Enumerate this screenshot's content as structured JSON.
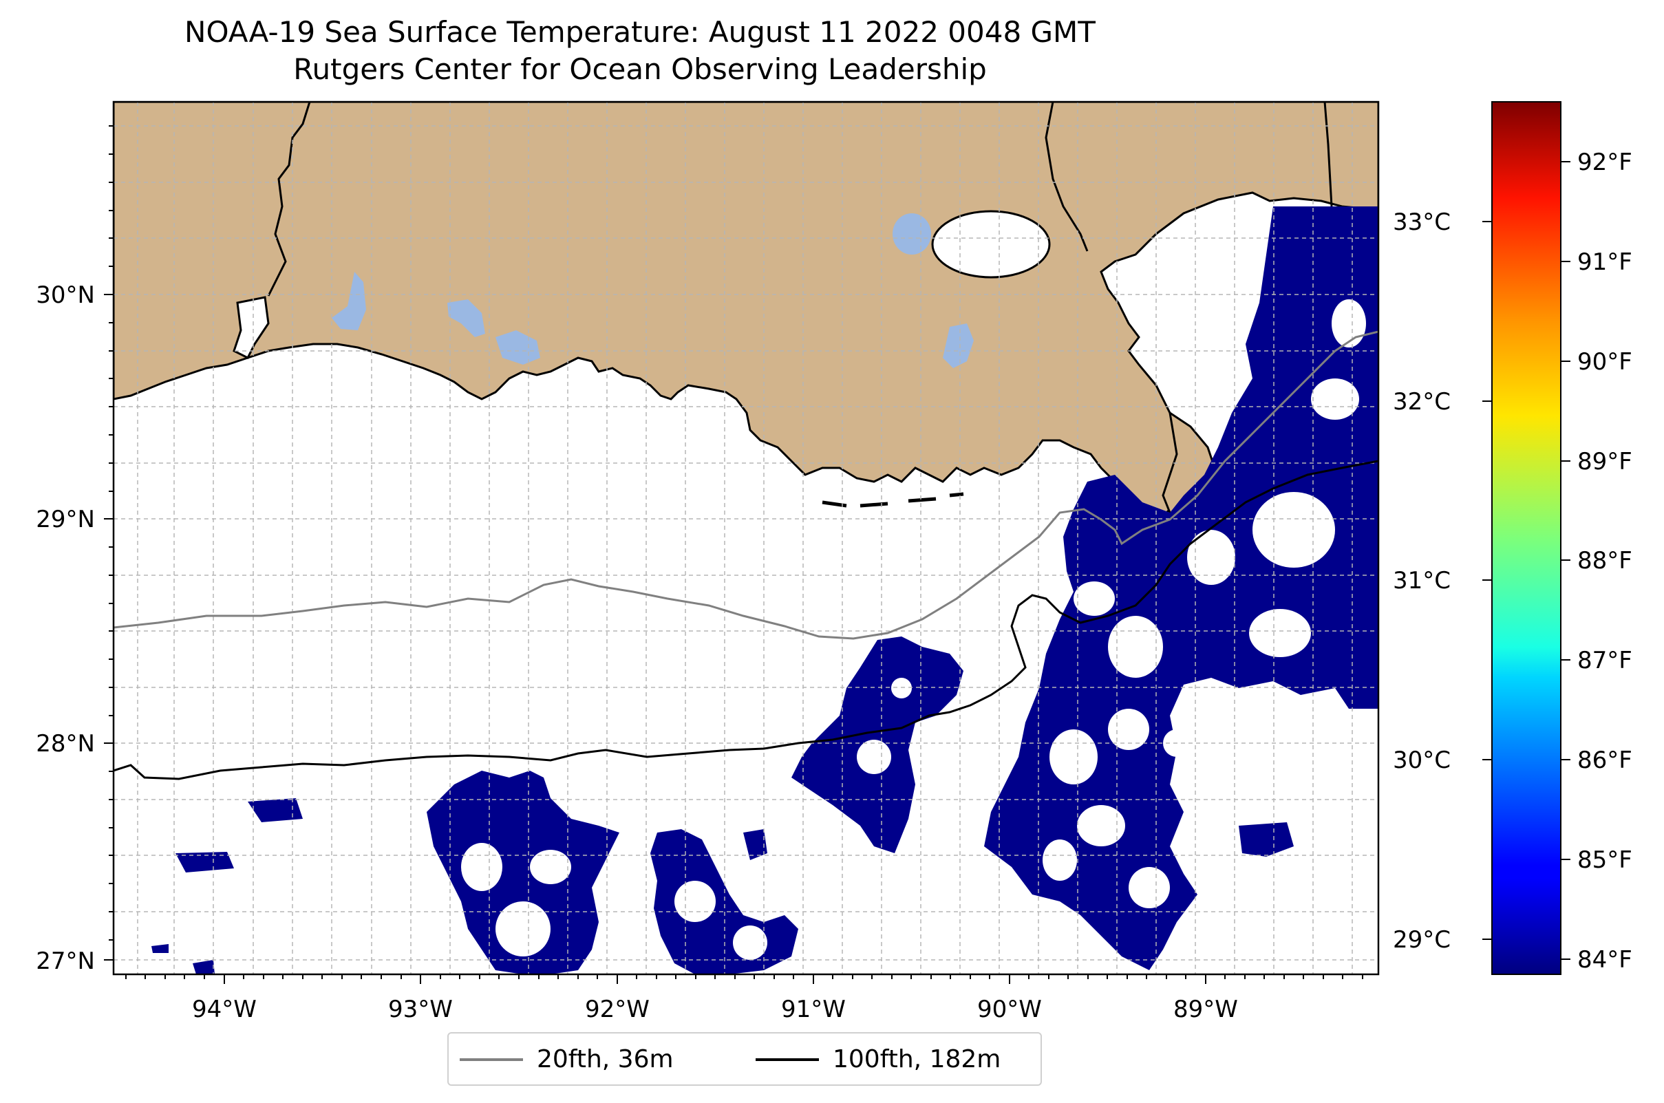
{
  "title": {
    "line1": "NOAA-19 Sea Surface Temperature: August 11 2022 0048 GMT",
    "line2": "Rutgers Center for Ocean Observing Leadership"
  },
  "map": {
    "lon_range": [
      -94.5,
      -88.2
    ],
    "lat_range": [
      26.95,
      30.85
    ],
    "lon_ticks": [
      "94°W",
      "93°W",
      "92°W",
      "91°W",
      "90°W",
      "89°W"
    ],
    "lat_ticks": [
      "30°N",
      "29°N",
      "28°N",
      "27°N"
    ],
    "gridlines": true,
    "land_color": "#d2b48c",
    "lake_color": "#9ab8e3",
    "sst_color": "#00008b",
    "ocean_color": "#ffffff"
  },
  "legend": {
    "items": [
      {
        "label": "20fth, 36m",
        "color": "#808080"
      },
      {
        "label": "100fth, 182m",
        "color": "#000000"
      }
    ]
  },
  "colorbar": {
    "colormap": "jet",
    "celsius_ticks": [
      "33°C",
      "32°C",
      "31°C",
      "30°C",
      "29°C"
    ],
    "fahrenheit_ticks": [
      "92°F",
      "91°F",
      "90°F",
      "89°F",
      "88°F",
      "87°F",
      "86°F",
      "85°F",
      "84°F"
    ]
  }
}
